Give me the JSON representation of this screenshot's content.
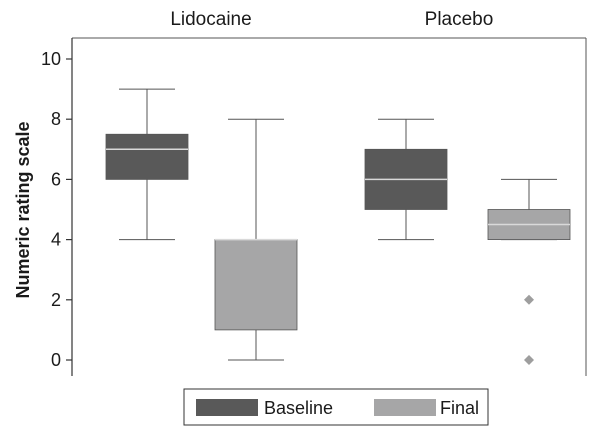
{
  "chart_data": {
    "type": "box",
    "ylabel": "Numeric rating scale",
    "ylim": [
      -0.5,
      10.3
    ],
    "yticks": [
      0,
      2,
      4,
      6,
      8,
      10
    ],
    "ytick_labels": [
      "0",
      "2",
      "4",
      "6",
      "8",
      "10"
    ],
    "grid": false,
    "legend_position": "bottom",
    "colors": {
      "Baseline": "#595959",
      "Final": "#a6a6a7",
      "median_line": "#d9d9d9",
      "outlier": "#9e9e9e"
    },
    "groups": [
      {
        "name": "Lidocaine",
        "boxes": [
          {
            "series": "Baseline",
            "whisker_low": 4,
            "q1": 6,
            "median": 7,
            "q3": 7.5,
            "whisker_high": 9,
            "outliers": []
          },
          {
            "series": "Final",
            "whisker_low": 0,
            "q1": 1,
            "median": 4,
            "q3": 4,
            "whisker_high": 8,
            "outliers": []
          }
        ]
      },
      {
        "name": "Placebo",
        "boxes": [
          {
            "series": "Baseline",
            "whisker_low": 4,
            "q1": 5,
            "median": 6,
            "q3": 7,
            "whisker_high": 8,
            "outliers": []
          },
          {
            "series": "Final",
            "whisker_low": 4,
            "q1": 4,
            "median": 4.5,
            "q3": 5,
            "whisker_high": 6,
            "outliers": [
              2,
              0
            ]
          }
        ]
      }
    ],
    "legend": [
      {
        "series": "Baseline",
        "label": "Baseline"
      },
      {
        "series": "Final",
        "label": "Final"
      }
    ]
  }
}
